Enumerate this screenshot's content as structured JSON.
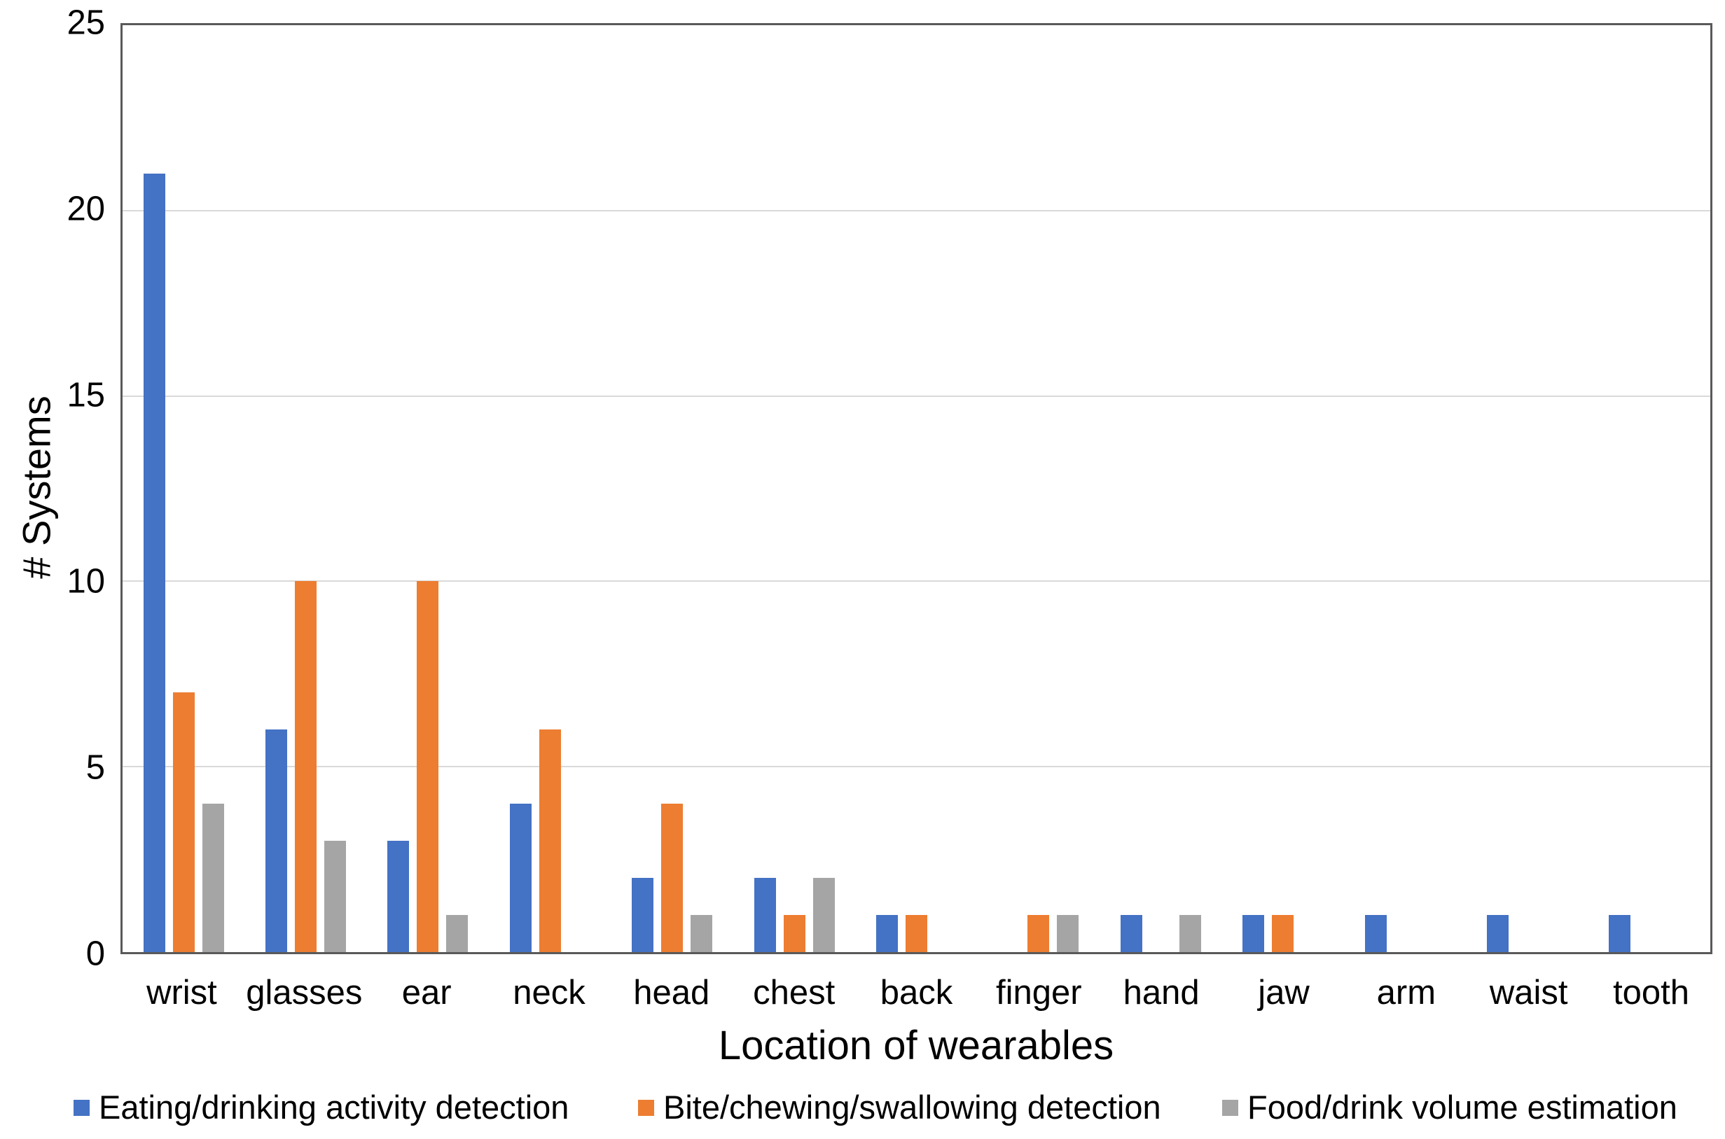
{
  "chart_data": {
    "type": "bar",
    "title": "",
    "xlabel": "Location of wearables",
    "ylabel": "# Systems",
    "ylim": [
      0,
      25
    ],
    "yticks": [
      0,
      5,
      10,
      15,
      20,
      25
    ],
    "grid": "horizontal",
    "grid_color": "#d9d9d9",
    "axis_color": "#595959",
    "legend_position": "bottom",
    "categories": [
      "wrist",
      "glasses",
      "ear",
      "neck",
      "head",
      "chest",
      "back",
      "finger",
      "hand",
      "jaw",
      "arm",
      "waist",
      "tooth"
    ],
    "series": [
      {
        "name": "Eating/drinking activity detection",
        "color": "#4472C4",
        "values": [
          21,
          6,
          3,
          4,
          2,
          2,
          1,
          0,
          1,
          1,
          1,
          1,
          1
        ]
      },
      {
        "name": "Bite/chewing/swallowing detection",
        "color": "#ED7D31",
        "values": [
          7,
          10,
          10,
          6,
          4,
          1,
          1,
          1,
          0,
          1,
          0,
          0,
          0
        ]
      },
      {
        "name": "Food/drink volume estimation",
        "color": "#A5A5A5",
        "values": [
          4,
          3,
          1,
          0,
          1,
          2,
          0,
          1,
          1,
          0,
          0,
          0,
          0
        ]
      }
    ]
  }
}
